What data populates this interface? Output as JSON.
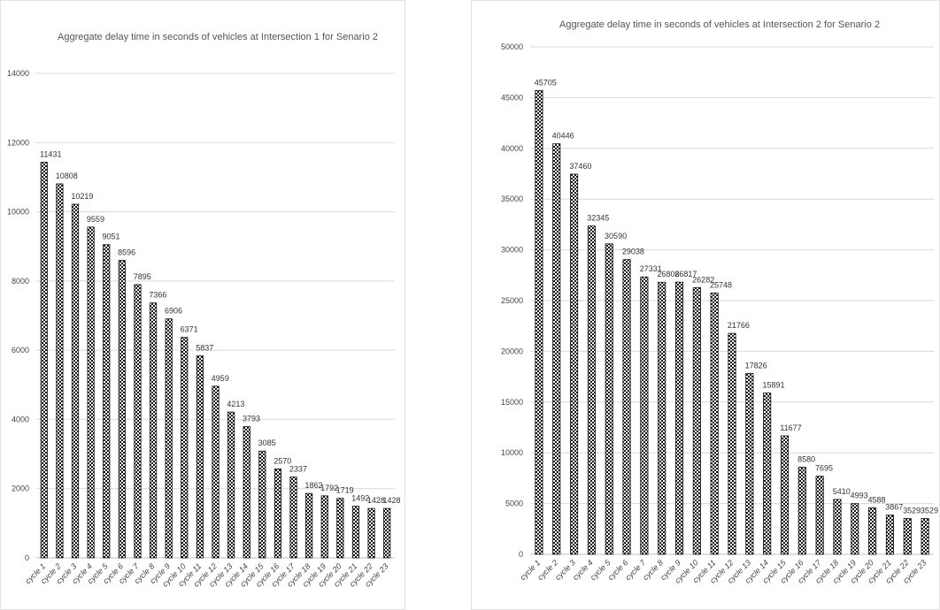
{
  "chart_data": [
    {
      "type": "bar",
      "title": "Aggregate delay time in seconds of vehicles at Intersection 1 for Senario 2",
      "xlabel": "",
      "ylabel": "",
      "ylim": [
        0,
        14000
      ],
      "yticks": [
        0,
        2000,
        4000,
        6000,
        8000,
        10000,
        12000,
        14000
      ],
      "grid": true,
      "bar_fill": "checkered",
      "bar_color": "#111111",
      "categories": [
        "cycle 1",
        "cycle 2",
        "cycle 3",
        "cycle 4",
        "cycle 5",
        "cycle 6",
        "cycle 7",
        "cycle 8",
        "cycle 9",
        "cycle 10",
        "cycle 11",
        "cycle 12",
        "cycle 13",
        "cycle 14",
        "cycle 15",
        "cycle 16",
        "cycle 17",
        "cycle 18",
        "cycle 19",
        "cycle 20",
        "cycle 21",
        "cycle 22",
        "cycle 23"
      ],
      "values": [
        11431,
        10808,
        10219,
        9559,
        9051,
        8596,
        7895,
        7366,
        6906,
        6371,
        5837,
        4959,
        4213,
        3793,
        3085,
        2570,
        2337,
        1862,
        1792,
        1719,
        1492,
        1428,
        1428
      ]
    },
    {
      "type": "bar",
      "title": "Aggregate delay time in seconds of vehicles at Intersection 2 for Senario 2",
      "xlabel": "",
      "ylabel": "",
      "ylim": [
        0,
        50000
      ],
      "yticks": [
        0,
        5000,
        10000,
        15000,
        20000,
        25000,
        30000,
        35000,
        40000,
        45000,
        50000
      ],
      "grid": true,
      "bar_fill": "checkered",
      "bar_color": "#111111",
      "categories": [
        "cycle 1",
        "cycle 2",
        "cycle 3",
        "cycle 4",
        "cycle 5",
        "cycle 6",
        "cycle 7",
        "cycle 8",
        "cycle 9",
        "cycle 10",
        "cycle 11",
        "cycle 12",
        "cycle 13",
        "cycle 14",
        "cycle 15",
        "cycle 16",
        "cycle 17",
        "cycle 18",
        "cycle 19",
        "cycle 20",
        "cycle 21",
        "cycle 22",
        "cycle 23"
      ],
      "values": [
        45705,
        40446,
        37460,
        32345,
        30590,
        29038,
        27331,
        26808,
        26817,
        26282,
        25748,
        21766,
        17826,
        15891,
        11677,
        8580,
        7695,
        5410,
        4993,
        4588,
        3867,
        3529,
        3529
      ]
    }
  ]
}
